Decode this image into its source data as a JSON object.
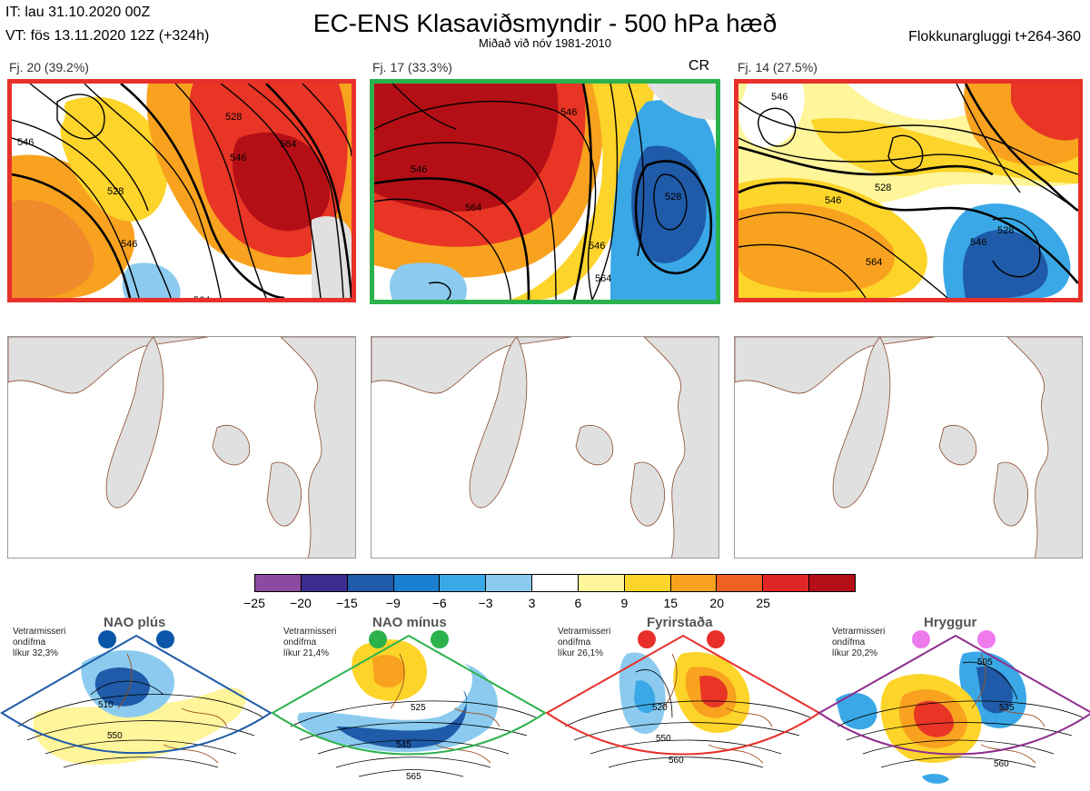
{
  "header": {
    "init_time": "IT: lau 31.10.2020 00Z",
    "valid_time": "VT: fös 13.11.2020 12Z  (+324h)",
    "title": "EC-ENS Klasaviðsmyndir - 500 hPa hæð",
    "subtitle": "Miðað við nóv 1981-2010",
    "window": "Flokkunargluggi t+264-360"
  },
  "clusters": [
    {
      "label": "Fj. 20 (39.2%)",
      "frame_color": "#e8302a",
      "badge": "",
      "contours": [
        "528",
        "546",
        "564",
        "546",
        "528",
        "546",
        "564"
      ]
    },
    {
      "label": "Fj. 17 (33.3%)",
      "frame_color": "#2bb24c",
      "badge": "CR",
      "contours": [
        "546",
        "546",
        "564",
        "546",
        "564",
        "528"
      ]
    },
    {
      "label": "Fj. 14 (27.5%)",
      "frame_color": "#e8302a",
      "badge": "",
      "contours": [
        "546",
        "528",
        "546",
        "564",
        "546",
        "528"
      ]
    }
  ],
  "colorbar": {
    "colors": [
      "#8e4aa0",
      "#3d2d8f",
      "#1f5ba8",
      "#1a7fd0",
      "#3aa8e6",
      "#8ccbef",
      "#ffffff",
      "#fff59a",
      "#fdd42a",
      "#f8a21f",
      "#ee6125",
      "#e02626",
      "#b40f16"
    ],
    "ticks": [
      "−25",
      "−20",
      "−15",
      "−9",
      "−6",
      "−3",
      "3",
      "6",
      "9",
      "15",
      "20",
      "25"
    ]
  },
  "regimes": [
    {
      "name": "NAO plús",
      "desc": [
        "Vetrarmisseri",
        "ondífma",
        "líkur 32,3%"
      ],
      "color": "#1f5ba8",
      "dot_color": "#0b56a8",
      "contours": [
        "510",
        "550"
      ]
    },
    {
      "name": "NAO mínus",
      "desc": [
        "Vetrarmisseri",
        "ondífma",
        "líkur 21,4%"
      ],
      "color": "#2bb24c",
      "dot_color": "#2bb24c",
      "contours": [
        "525",
        "545",
        "565"
      ]
    },
    {
      "name": "Fyrirstaða",
      "desc": [
        "Vetrarmisseri",
        "ondífma",
        "líkur 26,1%"
      ],
      "color": "#e8302a",
      "dot_color": "#e8302a",
      "contours": [
        "520",
        "550",
        "560"
      ]
    },
    {
      "name": "Hryggur",
      "desc": [
        "Vetrarmisseri",
        "ondífma",
        "líkur 20,2%"
      ],
      "color": "#8e2d8e",
      "dot_color": "#ee7aee",
      "contours": [
        "505",
        "535",
        "560"
      ]
    }
  ]
}
